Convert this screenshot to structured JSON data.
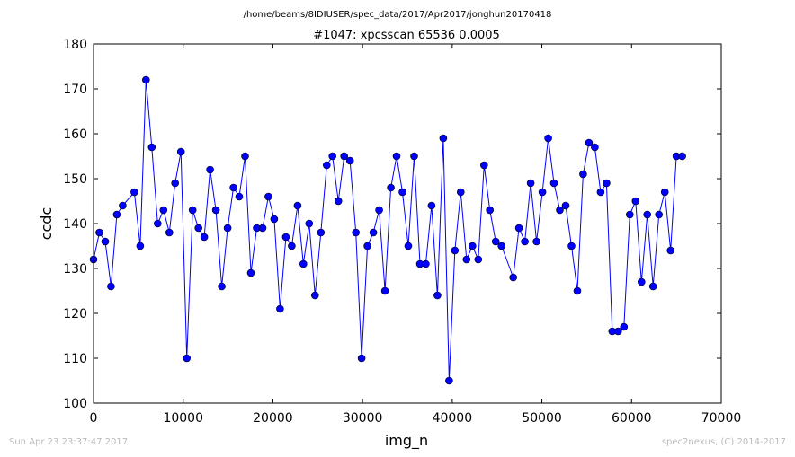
{
  "header": {
    "path": "/home/beams/8IDIUSER/spec_data/2017/Apr2017/jonghun20170418"
  },
  "footer": {
    "timestamp": "Sun Apr 23 23:37:47 2017",
    "credit": "spec2nexus, (C) 2014-2017"
  },
  "colors": {
    "series": "#0000ff",
    "axes": "#000000",
    "footer_text": "#bbbbbb"
  },
  "chart_data": {
    "type": "line",
    "title": "#1047: xpcsscan 65536 0.0005",
    "xlabel": "img_n",
    "ylabel": "ccdc",
    "xlim": [
      0,
      70000
    ],
    "ylim": [
      100,
      180
    ],
    "xticks": [
      "0",
      "10000",
      "20000",
      "30000",
      "40000",
      "50000",
      "60000",
      "70000"
    ],
    "yticks": [
      "100",
      "110",
      "120",
      "130",
      "140",
      "150",
      "160",
      "170",
      "180"
    ],
    "grid": false,
    "marker": "circle",
    "series": [
      {
        "x": [
          0,
          650,
          1300,
          1950,
          2600,
          3250,
          4550,
          5200,
          5850,
          6500,
          7150,
          7800,
          8450,
          9100,
          9750,
          10400,
          11050,
          11700,
          12350,
          13000,
          13650,
          14300,
          14950,
          15600,
          16250,
          16900,
          17550,
          18200,
          18850,
          19500,
          20150,
          20800,
          21450,
          22100,
          22750,
          23400,
          24050,
          24700,
          25350,
          26000,
          26650,
          27300,
          27950,
          28600,
          29250,
          29900,
          30550,
          31200,
          31850,
          32500,
          33150,
          33800,
          34450,
          35100,
          35750,
          36400,
          37050,
          37700,
          38350,
          39000,
          39650,
          40300,
          40950,
          41600,
          42250,
          42900,
          43550,
          44200,
          44850,
          45500,
          46800,
          47450,
          48100,
          48750,
          49400,
          50050,
          50700,
          51350,
          52000,
          52650,
          53300,
          53950,
          54600,
          55250,
          55900,
          56550,
          57200,
          57850,
          58500,
          59150,
          59800,
          60450,
          61100,
          61750,
          62400,
          63050,
          63700,
          64350,
          65000,
          65650
        ],
        "values": [
          132,
          138,
          136,
          126,
          142,
          144,
          147,
          135,
          172,
          157,
          140,
          143,
          138,
          149,
          156,
          110,
          143,
          139,
          137,
          152,
          143,
          126,
          139,
          148,
          146,
          155,
          129,
          139,
          139,
          146,
          141,
          121,
          137,
          135,
          144,
          131,
          140,
          124,
          138,
          153,
          155,
          145,
          155,
          154,
          138,
          110,
          135,
          138,
          143,
          125,
          148,
          155,
          147,
          135,
          155,
          131,
          131,
          144,
          124,
          159,
          105,
          134,
          147,
          132,
          135,
          132,
          153,
          143,
          136,
          135,
          128,
          139,
          136,
          149,
          136,
          147,
          159,
          149,
          143,
          144,
          135,
          125,
          151,
          158,
          157,
          147,
          149,
          116,
          116,
          117,
          142,
          145,
          127,
          142,
          126,
          142,
          147,
          134,
          155,
          155
        ]
      }
    ]
  }
}
